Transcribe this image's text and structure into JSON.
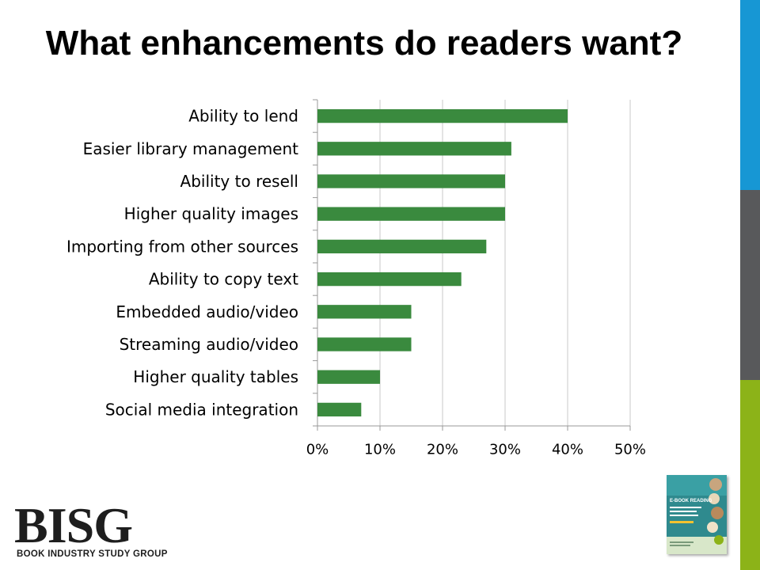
{
  "slide": {
    "title": "What enhancements do readers want?"
  },
  "colors": {
    "bar": "#3a8a3e",
    "axis": "#999999",
    "grid": "#c8c8c8",
    "side_bar_top": "#1797d4",
    "side_bar_middle": "#58595b",
    "side_bar_bottom": "#8cb318",
    "logo": "#1e1e1e",
    "cover": "#2f8a8e"
  },
  "chart_data": {
    "type": "bar",
    "orientation": "horizontal",
    "title": "",
    "xlabel": "",
    "ylabel": "",
    "categories": [
      "Ability to lend",
      "Easier library management",
      "Ability to resell",
      "Higher quality images",
      "Importing from other sources",
      "Ability to copy text",
      "Embedded audio/video",
      "Streaming audio/video",
      "Higher quality tables",
      "Social media integration"
    ],
    "values": [
      40,
      31,
      30,
      30,
      27,
      23,
      15,
      15,
      10,
      7
    ],
    "xlim": [
      0,
      50
    ],
    "ticks": [
      0,
      10,
      20,
      30,
      40,
      50
    ],
    "tick_labels": [
      "0%",
      "10%",
      "20%",
      "30%",
      "40%",
      "50%"
    ],
    "grid": true,
    "legend": "none"
  },
  "logo": {
    "name": "BISG",
    "tagline": "BOOK INDUSTRY STUDY GROUP"
  },
  "cover": {
    "title": "E-BOOK READING"
  }
}
